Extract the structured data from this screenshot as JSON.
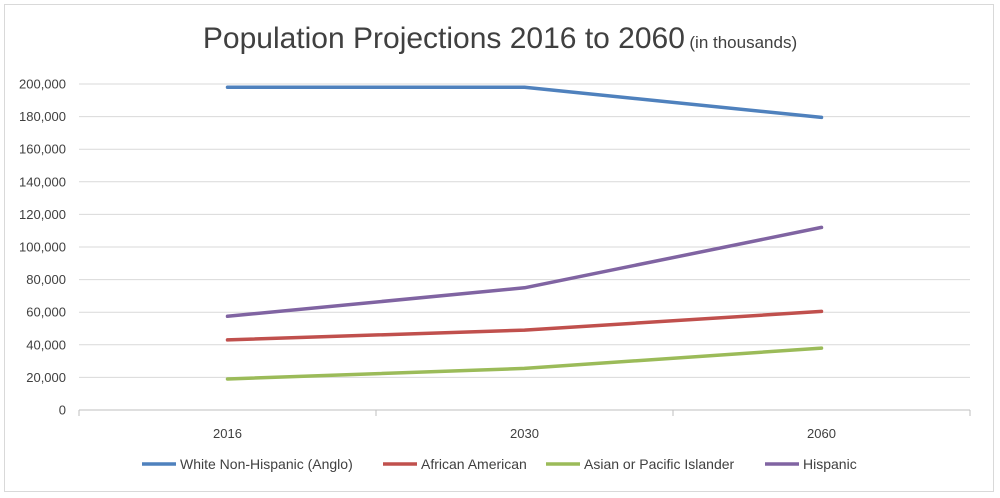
{
  "chart_data": {
    "type": "line",
    "title": "Population Projections 2016 to 2060",
    "subtitle": "(in thousands)",
    "xlabel": "",
    "ylabel": "",
    "categories": [
      "2016",
      "2030",
      "2060"
    ],
    "ylim": [
      0,
      200000
    ],
    "yticks": [
      "0",
      "20,000",
      "40,000",
      "60,000",
      "80,000",
      "100,000",
      "120,000",
      "140,000",
      "160,000",
      "180,000",
      "200,000"
    ],
    "grid": true,
    "legend_position": "bottom",
    "series": [
      {
        "name": "White Non-Hispanic (Anglo)",
        "values": [
          198000,
          198000,
          179500
        ],
        "color": "#4f81bd"
      },
      {
        "name": "African American",
        "values": [
          43000,
          49000,
          60500
        ],
        "color": "#c0504d"
      },
      {
        "name": "Asian or Pacific Islander",
        "values": [
          19000,
          25500,
          38000
        ],
        "color": "#9bbb59"
      },
      {
        "name": "Hispanic",
        "values": [
          57500,
          75000,
          112000
        ],
        "color": "#8064a2"
      }
    ]
  }
}
